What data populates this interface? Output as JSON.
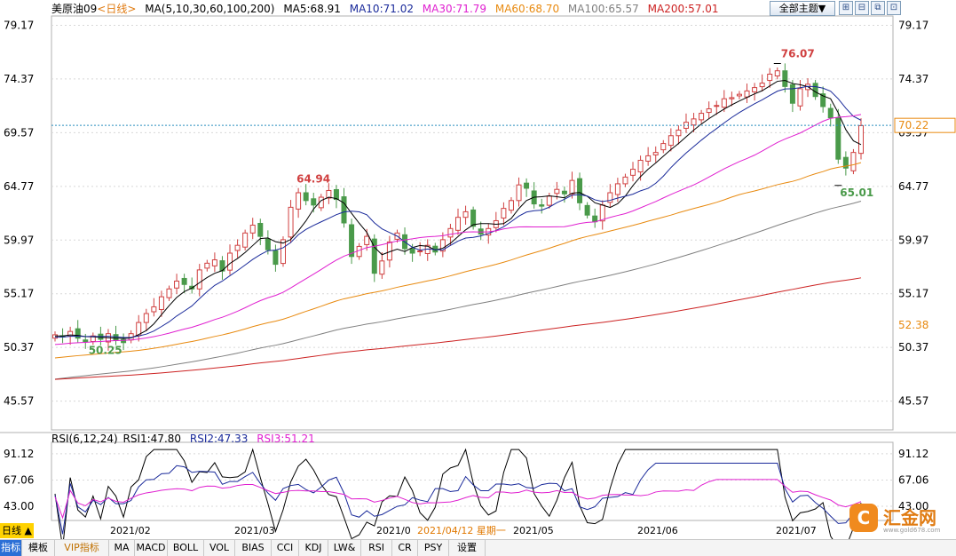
{
  "header": {
    "symbol": "美原油09",
    "period": "<日线>",
    "ma_params": "MA(5,10,30,60,100,200)",
    "ma5": "MA5:68.91",
    "ma10": "MA10:71.02",
    "ma30": "MA30:71.79",
    "ma60": "MA60:68.70",
    "ma100": "MA100:65.57",
    "ma200": "MA200:57.01",
    "theme_button": "全部主题▼"
  },
  "colors": {
    "ma5": "#000000",
    "ma10": "#1a2a9a",
    "ma30": "#e020d0",
    "ma60": "#e88a10",
    "ma100": "#808080",
    "ma200": "#cc2222",
    "up": "#d04040",
    "down": "#4a9a4a",
    "grid": "#d8d8d8"
  },
  "rsi": {
    "params": "RSI(6,12,24)",
    "rsi1": "RSI1:47.80",
    "rsi2": "RSI2:47.33",
    "rsi3": "RSI3:51.21"
  },
  "axis": {
    "price_ticks": [
      "79.17",
      "74.37",
      "69.57",
      "64.77",
      "59.97",
      "55.17",
      "50.37",
      "45.57"
    ],
    "rsi_ticks": [
      "91.12",
      "67.06",
      "43.00"
    ],
    "current_price": "70.22",
    "ma60_value": "52.38",
    "high_label": "76.07",
    "low_label": "65.01",
    "mar_high_label": "64.94",
    "start_low_label": "50.25"
  },
  "dates": {
    "day_label": "日线",
    "labels": [
      "2021/02",
      "2021/03",
      "2021/0",
      "2021/05",
      "2021/06",
      "2021/07"
    ],
    "cursor": "2021/04/12 星期一"
  },
  "toolbar": {
    "tabs": [
      "指标",
      "模板",
      "VIP指标",
      "MA",
      "MACD",
      "BOLL",
      "VOL",
      "BIAS",
      "CCI",
      "KDJ",
      "LW&",
      "RSI",
      "CR",
      "PSY",
      "设置"
    ]
  },
  "brand": {
    "name": "汇金网",
    "url": "www.gold678.com"
  },
  "chart_data": {
    "type": "candlestick",
    "title": "美原油09 <日线>",
    "ylim": [
      43.0,
      80.0
    ],
    "x_range": [
      "2021-01",
      "2021-07"
    ],
    "annotations": [
      {
        "label": "76.07",
        "type": "high"
      },
      {
        "label": "65.01",
        "type": "low"
      },
      {
        "label": "64.94",
        "type": "local-high"
      },
      {
        "label": "50.25",
        "type": "start-low"
      }
    ],
    "ma_lines": [
      {
        "name": "MA5",
        "last": 68.91
      },
      {
        "name": "MA10",
        "last": 71.02
      },
      {
        "name": "MA30",
        "last": 71.79
      },
      {
        "name": "MA60",
        "last": 68.7
      },
      {
        "name": "MA100",
        "last": 65.57
      },
      {
        "name": "MA200",
        "last": 57.01
      }
    ],
    "closes": [
      51.5,
      51.3,
      51.8,
      51.2,
      50.9,
      51.4,
      51.1,
      51.6,
      51.0,
      50.8,
      51.6,
      52.6,
      53.4,
      54.0,
      54.9,
      55.6,
      56.3,
      56.0,
      55.6,
      57.3,
      57.9,
      58.2,
      57.2,
      58.8,
      59.5,
      60.6,
      61.3,
      60.3,
      59.1,
      57.8,
      60.0,
      62.9,
      64.2,
      63.5,
      63.1,
      63.8,
      64.4,
      63.6,
      61.5,
      58.5,
      59.4,
      60.3,
      57.0,
      58.1,
      59.8,
      60.6,
      59.2,
      58.8,
      59.0,
      59.5,
      58.9,
      60.0,
      61.0,
      62.0,
      62.5,
      61.2,
      60.5,
      61.0,
      61.7,
      62.8,
      63.5,
      64.9,
      64.6,
      63.2,
      63.0,
      63.9,
      64.5,
      64.1,
      65.3,
      63.3,
      62.2,
      61.6,
      63.1,
      64.2,
      65.0,
      65.6,
      66.3,
      67.1,
      67.5,
      67.8,
      68.6,
      69.3,
      69.8,
      70.5,
      70.8,
      71.3,
      71.7,
      72.0,
      72.6,
      72.7,
      73.0,
      73.3,
      73.6,
      74.0,
      74.8,
      75.1,
      73.7,
      72.2,
      73.5,
      73.9,
      72.8,
      71.9,
      70.9,
      67.2,
      66.4,
      67.8,
      70.2
    ],
    "rsi_series": [
      {
        "name": "RSI1",
        "last": 47.8
      },
      {
        "name": "RSI2",
        "last": 47.33
      },
      {
        "name": "RSI3",
        "last": 51.21
      }
    ],
    "rsi_ylim": [
      30.0,
      100.0
    ]
  }
}
